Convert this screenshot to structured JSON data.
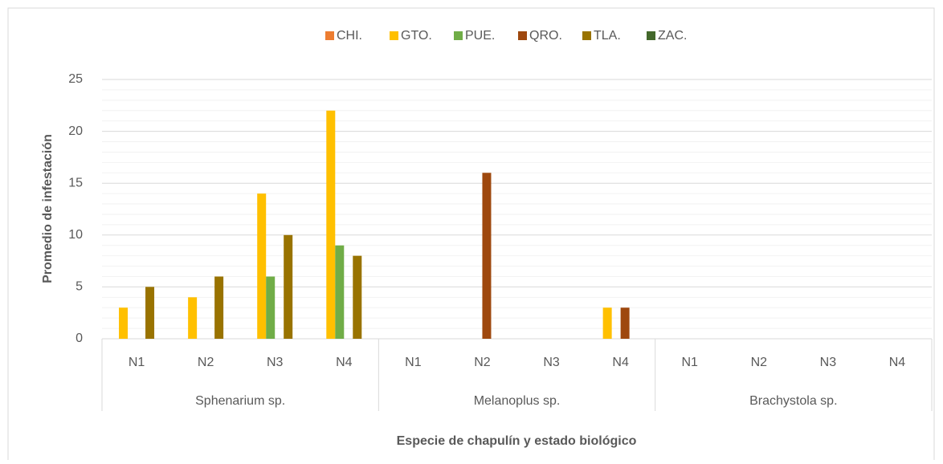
{
  "chart_data": {
    "type": "bar",
    "x_title": "Especie de chapulín y estado biológico",
    "y_title": "Promedio de infestación",
    "categories": [
      "N1",
      "N2",
      "N3",
      "N4",
      "N1",
      "N2",
      "N3",
      "N4",
      "N1",
      "N2",
      "N3",
      "N4"
    ],
    "groups": [
      "Sphenarium sp.",
      "Melanoplus sp.",
      "Brachystola sp."
    ],
    "series": [
      {
        "name": "CHI.",
        "color": "#ed7d31",
        "values": [
          0,
          0,
          0,
          0,
          0,
          0,
          0,
          0,
          0,
          0,
          0,
          0
        ]
      },
      {
        "name": "GTO.",
        "color": "#ffc000",
        "values": [
          3,
          4,
          14,
          22,
          0,
          0,
          0,
          3,
          0,
          0,
          0,
          0
        ]
      },
      {
        "name": "PUE.",
        "color": "#70ad47",
        "values": [
          0,
          0,
          6,
          9,
          0,
          0,
          0,
          0,
          0,
          0,
          0,
          0
        ]
      },
      {
        "name": "QRO.",
        "color": "#9e480e",
        "values": [
          0,
          0,
          0,
          0,
          0,
          16,
          0,
          3,
          0,
          0,
          0,
          0
        ]
      },
      {
        "name": "TLA.",
        "color": "#997300",
        "values": [
          5,
          6,
          10,
          8,
          0,
          0,
          0,
          0,
          0,
          0,
          0,
          0
        ]
      },
      {
        "name": "ZAC.",
        "color": "#43682b",
        "values": [
          0,
          0,
          0,
          0,
          0,
          0,
          0,
          0,
          0,
          0,
          0,
          0
        ]
      }
    ],
    "ylim": [
      0,
      25
    ],
    "yticks": [
      0,
      5,
      10,
      15,
      20,
      25
    ],
    "minor_yticks": [
      1,
      2,
      3,
      4,
      6,
      7,
      8,
      9,
      11,
      12,
      13,
      14,
      16,
      17,
      18,
      19,
      21,
      22,
      23,
      24
    ],
    "grid": true,
    "legend": "top"
  }
}
